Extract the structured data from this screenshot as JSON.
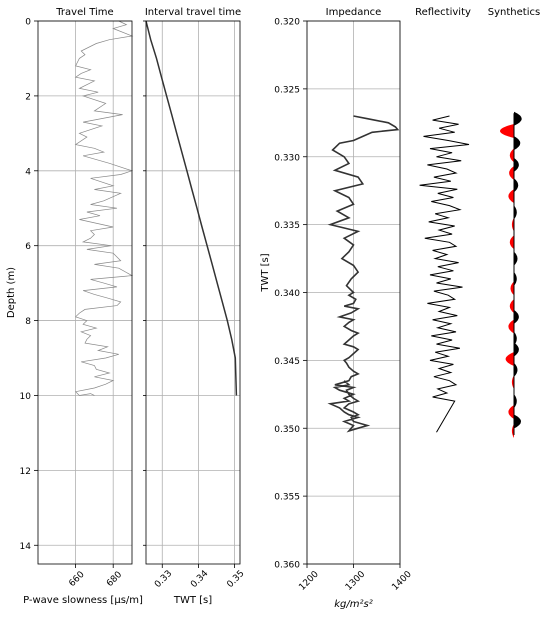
{
  "chart_data": [
    {
      "type": "line",
      "title": "Travel Time",
      "xlabel": "P-wave slowness [μs/m]",
      "ylabel": "Depth (m)",
      "xlim": [
        640,
        690
      ],
      "ylim": [
        14.5,
        0
      ],
      "x_ticks": [
        "660",
        "680"
      ],
      "y_ticks": [
        "0",
        "2",
        "4",
        "6",
        "8",
        "10",
        "12",
        "14"
      ],
      "grid": true,
      "color": "#888888",
      "series": [
        {
          "x": [
            683,
            687,
            680,
            690,
            678,
            671,
            663,
            665,
            662,
            660,
            668,
            663,
            660,
            670,
            662,
            672,
            664,
            676,
            670,
            685,
            664,
            674,
            662,
            666,
            660,
            670,
            675,
            664,
            678,
            690,
            684,
            668,
            680,
            670,
            684,
            675,
            668,
            682,
            666,
            673,
            662,
            680,
            668,
            670,
            668,
            664,
            679,
            666,
            680,
            684,
            670,
            683,
            690,
            668,
            675,
            682,
            664,
            670,
            677,
            684,
            682,
            665,
            662,
            660,
            666,
            664,
            671,
            663,
            668,
            666,
            665,
            677,
            672,
            683,
            676,
            663,
            670,
            671,
            678,
            670,
            680,
            676,
            670,
            660,
            662,
            668,
            670
          ],
          "y": [
            0,
            0.1,
            0.2,
            0.4,
            0.5,
            0.6,
            0.8,
            0.9,
            1.0,
            1.2,
            1.3,
            1.4,
            1.5,
            1.6,
            1.8,
            1.9,
            2.0,
            2.2,
            2.4,
            2.5,
            2.7,
            2.8,
            3.0,
            3.1,
            3.3,
            3.4,
            3.5,
            3.6,
            3.8,
            4.0,
            4.1,
            4.2,
            4.4,
            4.5,
            4.6,
            4.8,
            4.9,
            5.0,
            5.1,
            5.2,
            5.3,
            5.5,
            5.6,
            5.7,
            5.8,
            5.9,
            6.0,
            6.1,
            6.2,
            6.4,
            6.5,
            6.6,
            6.8,
            6.9,
            7.0,
            7.1,
            7.2,
            7.3,
            7.4,
            7.5,
            7.6,
            7.7,
            7.8,
            7.9,
            8.0,
            8.1,
            8.2,
            8.3,
            8.4,
            8.5,
            8.6,
            8.7,
            8.8,
            8.9,
            9.0,
            9.1,
            9.2,
            9.3,
            9.4,
            9.5,
            9.6,
            9.7,
            9.8,
            9.9,
            10.0,
            9.95,
            10.0
          ]
        }
      ]
    },
    {
      "type": "line",
      "title": "Interval travel time",
      "xlabel": "TWT [s]",
      "xlim": [
        0.3255,
        0.3515
      ],
      "ylim": [
        14.5,
        0
      ],
      "x_ticks": [
        "0.33",
        "0.34",
        "0.35"
      ],
      "grid": true,
      "color": "#333333",
      "series": [
        {
          "x": [
            0.3255,
            0.3268,
            0.3284,
            0.3298,
            0.3312,
            0.3326,
            0.334,
            0.3354,
            0.3368,
            0.3382,
            0.3396,
            0.341,
            0.3424,
            0.3438,
            0.3452,
            0.3466,
            0.348,
            0.3492,
            0.3502,
            0.3505
          ],
          "y": [
            0,
            0.5,
            1.0,
            1.5,
            2.0,
            2.5,
            3.0,
            3.5,
            4.0,
            4.5,
            5.0,
            5.5,
            6.0,
            6.5,
            7.0,
            7.5,
            8.0,
            8.5,
            9.0,
            10.0
          ]
        }
      ]
    },
    {
      "type": "line",
      "title": "Impedance",
      "xlabel": "kg/m²s²",
      "ylabel": "TWT [s]",
      "xlim": [
        1200,
        1400
      ],
      "ylim": [
        0.36,
        0.32
      ],
      "x_ticks": [
        "1200",
        "1300",
        "1400"
      ],
      "y_ticks": [
        "0.320",
        "0.325",
        "0.330",
        "0.335",
        "0.340",
        "0.345",
        "0.350",
        "0.355",
        "0.360"
      ],
      "grid": true,
      "color": "#333333",
      "series": [
        {
          "x": [
            1300,
            1330,
            1375,
            1390,
            1395,
            1340,
            1320,
            1300,
            1270,
            1255,
            1280,
            1290,
            1260,
            1310,
            1320,
            1260,
            1290,
            1300,
            1265,
            1290,
            1250,
            1310,
            1280,
            1300,
            1290,
            1275,
            1300,
            1310,
            1295,
            1285,
            1300,
            1290,
            1305,
            1300,
            1280,
            1310,
            1295,
            1270,
            1300,
            1290,
            1280,
            1295,
            1310,
            1300,
            1290,
            1280,
            1300,
            1310,
            1300,
            1290,
            1280,
            1285,
            1290,
            1300,
            1310,
            1295,
            1290,
            1260,
            1300,
            1285,
            1290,
            1300,
            1310,
            1290,
            1280,
            1300,
            1310,
            1295,
            1300,
            1330,
            1310,
            1290,
            1300,
            1280,
            1310,
            1290,
            1280,
            1270,
            1250,
            1290,
            1280,
            1300,
            1270,
            1260,
            1290,
            1280
          ],
          "y": [
            0.327,
            0.3272,
            0.3275,
            0.3278,
            0.328,
            0.3282,
            0.3285,
            0.3288,
            0.329,
            0.3295,
            0.33,
            0.3305,
            0.331,
            0.3315,
            0.332,
            0.3325,
            0.333,
            0.3335,
            0.334,
            0.3345,
            0.335,
            0.3355,
            0.336,
            0.3365,
            0.337,
            0.3375,
            0.338,
            0.3385,
            0.339,
            0.3395,
            0.34,
            0.3402,
            0.3405,
            0.3408,
            0.341,
            0.3412,
            0.3415,
            0.3418,
            0.342,
            0.3422,
            0.3425,
            0.3428,
            0.343,
            0.3432,
            0.3435,
            0.3438,
            0.344,
            0.3442,
            0.3445,
            0.3448,
            0.345,
            0.3452,
            0.3455,
            0.3458,
            0.346,
            0.3462,
            0.3465,
            0.3468,
            0.347,
            0.3472,
            0.3475,
            0.3478,
            0.348,
            0.3482,
            0.3485,
            0.3488,
            0.349,
            0.3492,
            0.3495,
            0.3498,
            0.35,
            0.3502,
            0.3498,
            0.3495,
            0.3492,
            0.349,
            0.3488,
            0.3485,
            0.3482,
            0.348,
            0.3478,
            0.3475,
            0.3472,
            0.347,
            0.3468,
            0.3465
          ]
        }
      ]
    },
    {
      "type": "line",
      "title": "Reflectivity",
      "ylim": [
        0.36,
        0.32
      ],
      "color": "#000000",
      "series": [
        {
          "x": [
            0.05,
            -0.08,
            0.12,
            -0.03,
            0.09,
            -0.15,
            0.04,
            0.2,
            -0.1,
            0.07,
            -0.05,
            0.14,
            -0.12,
            0.03,
            0.1,
            -0.07,
            0.06,
            -0.18,
            0.11,
            -0.04,
            0.08,
            -0.09,
            0.05,
            0.13,
            -0.06,
            0.04,
            -0.11,
            0.09,
            -0.03,
            0.07,
            -0.14,
            0.05,
            0.1,
            -0.08,
            0.03,
            -0.06,
            0.12,
            -0.04,
            0.08,
            -0.1,
            0.06,
            -0.05,
            0.15,
            -0.07,
            0.04,
            0.09,
            -0.12,
            0.05,
            -0.03,
            0.11,
            -0.08,
            0.06,
            -0.04,
            0.1,
            -0.09,
            0.07,
            -0.05,
            0.13,
            -0.06,
            0.04,
            -0.1,
            0.08,
            -0.03,
            0.06,
            -0.07,
            0.05,
            0.1,
            -0.04,
            0.03,
            -0.08,
            0.09,
            -0.05
          ],
          "y": [
            0.327,
            0.3273,
            0.3276,
            0.3279,
            0.3282,
            0.3285,
            0.3288,
            0.3291,
            0.3294,
            0.3297,
            0.33,
            0.3303,
            0.3306,
            0.3309,
            0.3312,
            0.3315,
            0.3318,
            0.3321,
            0.3324,
            0.3327,
            0.333,
            0.3333,
            0.3336,
            0.3339,
            0.3342,
            0.3345,
            0.3348,
            0.3351,
            0.3354,
            0.3357,
            0.336,
            0.3363,
            0.3366,
            0.3369,
            0.3372,
            0.3375,
            0.3378,
            0.3381,
            0.3384,
            0.3387,
            0.339,
            0.3393,
            0.3396,
            0.3399,
            0.3402,
            0.3405,
            0.3408,
            0.3411,
            0.3414,
            0.3417,
            0.342,
            0.3423,
            0.3426,
            0.3429,
            0.3432,
            0.3435,
            0.3438,
            0.3441,
            0.3444,
            0.3447,
            0.345,
            0.3453,
            0.3456,
            0.3459,
            0.3462,
            0.3465,
            0.3468,
            0.3471,
            0.3474,
            0.3477,
            0.348,
            0.3503
          ]
        }
      ]
    },
    {
      "type": "area",
      "title": "Synthetics",
      "ylim": [
        0.36,
        0.32
      ],
      "positive_color": "#000000",
      "negative_color": "#ff0000",
      "series": [
        {
          "wavelets": [
            {
              "t": 0.3272,
              "a": 0.55
            },
            {
              "t": 0.3281,
              "a": -1.0
            },
            {
              "t": 0.329,
              "a": 0.45
            },
            {
              "t": 0.3299,
              "a": -0.3
            },
            {
              "t": 0.3306,
              "a": 0.35
            },
            {
              "t": 0.3312,
              "a": -0.35
            },
            {
              "t": 0.3321,
              "a": 0.3
            },
            {
              "t": 0.3329,
              "a": -0.4
            },
            {
              "t": 0.3341,
              "a": 0.2
            },
            {
              "t": 0.335,
              "a": -0.15
            },
            {
              "t": 0.3363,
              "a": -0.3
            },
            {
              "t": 0.3375,
              "a": 0.25
            },
            {
              "t": 0.339,
              "a": 0.2
            },
            {
              "t": 0.3397,
              "a": -0.25
            },
            {
              "t": 0.341,
              "a": -0.3
            },
            {
              "t": 0.3418,
              "a": 0.35
            },
            {
              "t": 0.3425,
              "a": -0.4
            },
            {
              "t": 0.3434,
              "a": 0.2
            },
            {
              "t": 0.3442,
              "a": 0.35
            },
            {
              "t": 0.3449,
              "a": -0.6
            },
            {
              "t": 0.3457,
              "a": 0.25
            },
            {
              "t": 0.3466,
              "a": -0.15
            },
            {
              "t": 0.348,
              "a": 0.2
            },
            {
              "t": 0.3488,
              "a": -0.4
            },
            {
              "t": 0.3495,
              "a": 0.5
            },
            {
              "t": 0.3502,
              "a": -0.15
            }
          ]
        }
      ]
    }
  ]
}
